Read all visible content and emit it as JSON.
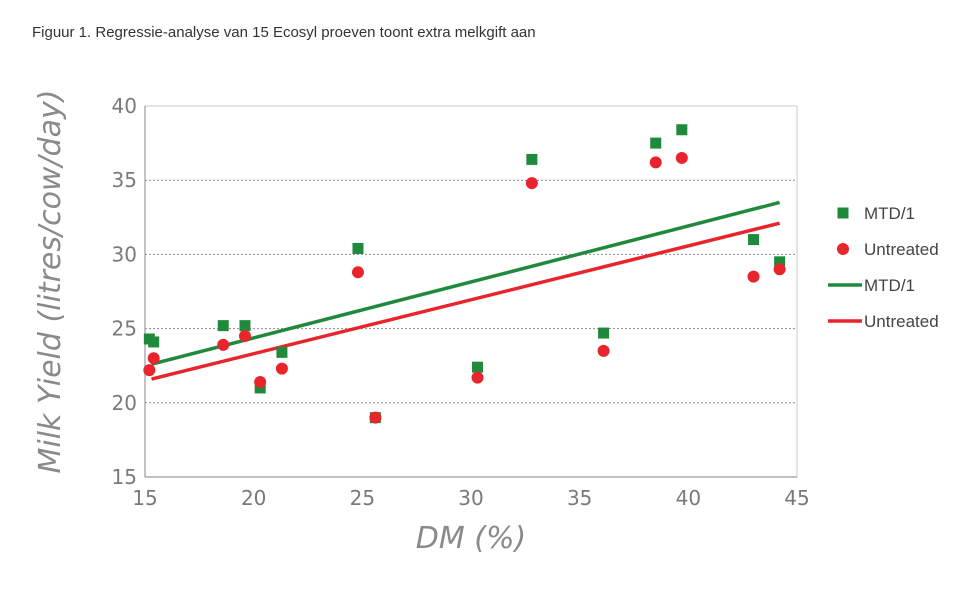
{
  "caption": "Figuur 1. Regressie-analyse van 15 Ecosyl proeven toont extra melkgift aan",
  "chart_data": {
    "type": "scatter",
    "xlabel": "DM (%)",
    "ylabel": "Milk Yield (litres/cow/day)",
    "xlim": [
      15,
      45
    ],
    "ylim": [
      15,
      40
    ],
    "xticks": [
      15,
      20,
      25,
      30,
      35,
      40,
      45
    ],
    "yticks": [
      15,
      20,
      25,
      30,
      35,
      40
    ],
    "grid": "horizontal dotted",
    "legend_position": "right",
    "series": [
      {
        "name": "MTD/1",
        "kind": "points",
        "marker": "square",
        "color": "#1f8a3c",
        "points": [
          [
            15.2,
            24.3
          ],
          [
            15.4,
            24.1
          ],
          [
            18.6,
            25.2
          ],
          [
            19.6,
            25.2
          ],
          [
            20.3,
            21.0
          ],
          [
            21.3,
            23.4
          ],
          [
            24.8,
            30.4
          ],
          [
            25.6,
            19.0
          ],
          [
            30.3,
            22.4
          ],
          [
            32.8,
            36.4
          ],
          [
            36.1,
            24.7
          ],
          [
            38.5,
            37.5
          ],
          [
            39.7,
            38.4
          ],
          [
            43.0,
            31.0
          ],
          [
            44.2,
            29.5
          ]
        ]
      },
      {
        "name": "Untreated",
        "kind": "points",
        "marker": "circle",
        "color": "#e8242c",
        "points": [
          [
            15.2,
            22.2
          ],
          [
            15.4,
            23.0
          ],
          [
            18.6,
            23.9
          ],
          [
            19.6,
            24.5
          ],
          [
            20.3,
            21.4
          ],
          [
            21.3,
            22.3
          ],
          [
            24.8,
            28.8
          ],
          [
            25.6,
            19.0
          ],
          [
            30.3,
            21.7
          ],
          [
            32.8,
            34.8
          ],
          [
            36.1,
            23.5
          ],
          [
            38.5,
            36.2
          ],
          [
            39.7,
            36.5
          ],
          [
            43.0,
            28.5
          ],
          [
            44.2,
            29.0
          ]
        ]
      },
      {
        "name": "MTD/1",
        "kind": "line",
        "color": "#1f8a3c",
        "x": [
          15.3,
          44.2
        ],
        "y": [
          22.6,
          33.5
        ]
      },
      {
        "name": "Untreated",
        "kind": "line",
        "color": "#e8242c",
        "x": [
          15.3,
          44.2
        ],
        "y": [
          21.6,
          32.1
        ]
      }
    ]
  }
}
